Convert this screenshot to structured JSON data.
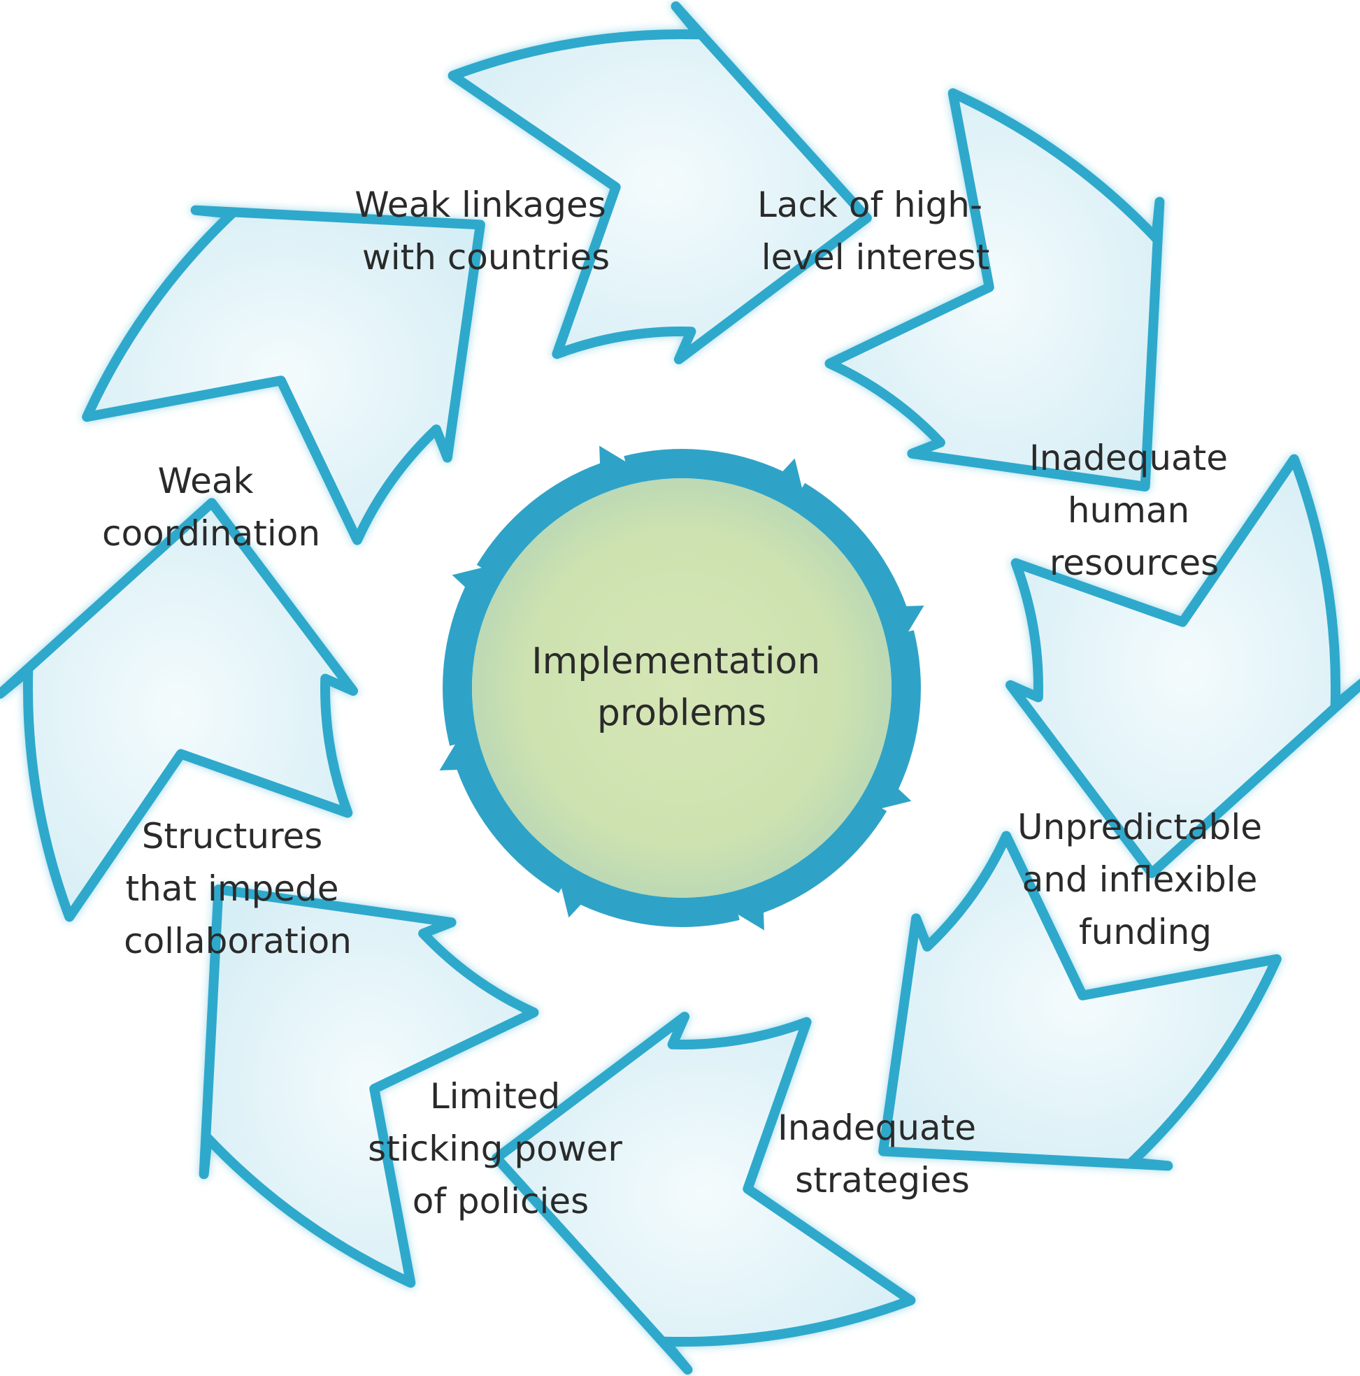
{
  "center": {
    "label_lines": [
      "Implementation",
      "problems"
    ]
  },
  "segments": [
    {
      "id": "weak-linkages",
      "lines": [
        "Weak linkages",
        "with countries"
      ]
    },
    {
      "id": "lack-interest",
      "lines": [
        "Lack of high-",
        "level interest"
      ]
    },
    {
      "id": "human-resources",
      "lines": [
        "Inadequate",
        "human",
        "resources"
      ]
    },
    {
      "id": "funding",
      "lines": [
        "Unpredictable",
        "and inflexible",
        "funding"
      ]
    },
    {
      "id": "strategies",
      "lines": [
        "Inadequate",
        "strategies"
      ]
    },
    {
      "id": "policies",
      "lines": [
        "Limited",
        "sticking power",
        "of policies"
      ]
    },
    {
      "id": "structures",
      "lines": [
        "Structures",
        "that impede",
        "collaboration"
      ]
    },
    {
      "id": "coordination",
      "lines": [
        "Weak",
        "coordination"
      ]
    }
  ],
  "colors": {
    "arrow_fill_inner": "#f4fbfd",
    "arrow_fill_outer": "#d6eef5",
    "arrow_stroke": "#2fa9cc",
    "hub_ring": "#2fa3c7",
    "hub_fill_center": "#d6e6b6",
    "hub_fill_edge": "#c4dbab",
    "text": "#2a2a2a"
  }
}
